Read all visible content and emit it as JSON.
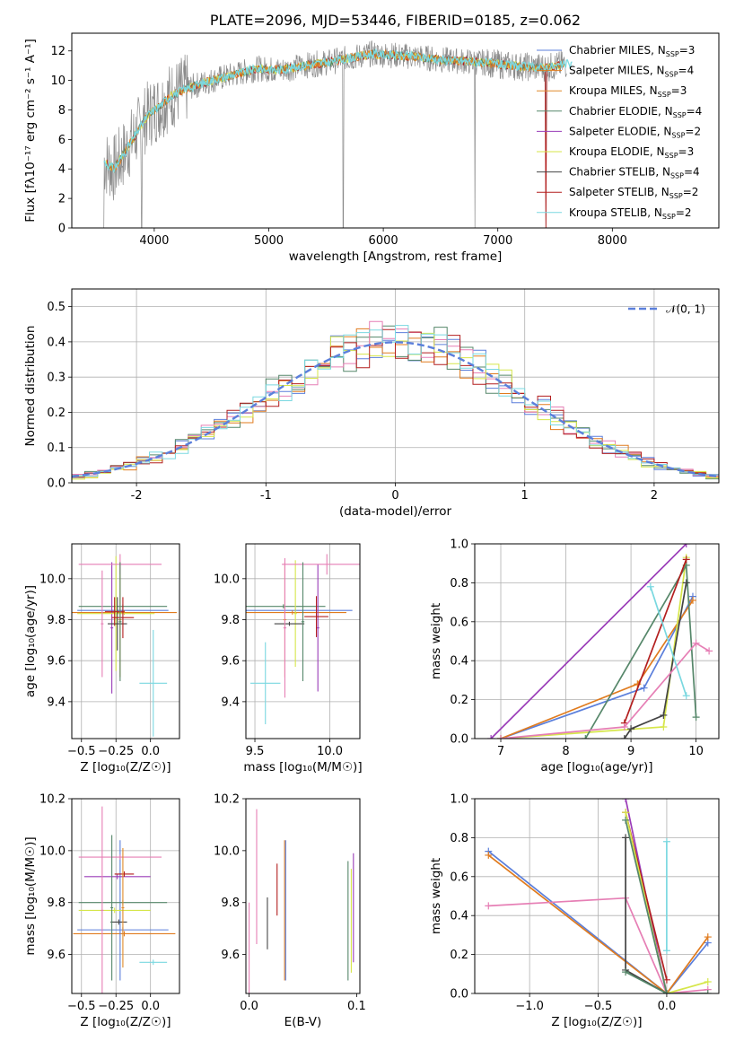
{
  "colors": {
    "chabrier_miles": "#5b7fdb",
    "salpeter_miles": "#e07b1e",
    "kroupa_miles": "#e08a2a",
    "chabrier_elodie": "#56876a",
    "salpeter_elodie": "#9a3cb8",
    "kroupa_elodie": "#d6e64a",
    "chabrier_stelib": "#444444",
    "salpeter_stelib": "#b31f1f",
    "kroupa_stelib": "#7ad8e0",
    "pink": "#e67fb5",
    "gray": "#8a8a8a",
    "grid": "#b0b0b0"
  },
  "chart_data": [
    {
      "type": "line",
      "panel": "spectrum",
      "title": "PLATE=2096, MJD=53446, FIBERID=0185, z=0.062",
      "xlabel": "wavelength [Angstrom, rest frame]",
      "ylabel": "Flux [fλ10⁻¹⁷ erg cm⁻² s⁻¹ A⁻¹]",
      "xlim": [
        3280,
        8930
      ],
      "ylim": [
        0,
        13.2
      ],
      "xticks": [
        4000,
        5000,
        6000,
        7000,
        8000
      ],
      "yticks": [
        0,
        2,
        4,
        6,
        8,
        10,
        12
      ],
      "grid": false,
      "legend_position": "upper-right",
      "data_continuum": {
        "x": [
          3560,
          3650,
          3750,
          3850,
          3950,
          4050,
          4150,
          4300,
          4500,
          4700,
          4900,
          5100,
          5300,
          5500,
          5700,
          5900,
          6100,
          6300,
          6500,
          6700,
          6900,
          7100,
          7300,
          7450,
          7600
        ],
        "y": [
          4.5,
          4.0,
          5.2,
          6.5,
          7.7,
          8.3,
          9.0,
          9.5,
          10.0,
          10.4,
          10.8,
          10.7,
          11.0,
          11.2,
          11.5,
          11.8,
          11.7,
          11.6,
          11.4,
          11.3,
          11.2,
          11.0,
          10.9,
          10.9,
          11.1
        ]
      },
      "data_dropouts_x": [
        3560,
        3890,
        5650,
        6800,
        7420
      ],
      "legend": [
        {
          "label": "Chabrier MILES, N",
          "sub": "SSP",
          "suffix": "=3",
          "color_key": "chabrier_miles"
        },
        {
          "label": "Salpeter MILES, N",
          "sub": "SSP",
          "suffix": "=4",
          "color_key": "salpeter_miles"
        },
        {
          "label": "Kroupa MILES, N",
          "sub": "SSP",
          "suffix": "=3",
          "color_key": "kroupa_miles"
        },
        {
          "label": "Chabrier ELODIE, N",
          "sub": "SSP",
          "suffix": "=4",
          "color_key": "chabrier_elodie"
        },
        {
          "label": "Salpeter ELODIE, N",
          "sub": "SSP",
          "suffix": "=2",
          "color_key": "salpeter_elodie"
        },
        {
          "label": "Kroupa ELODIE, N",
          "sub": "SSP",
          "suffix": "=3",
          "color_key": "kroupa_elodie"
        },
        {
          "label": "Chabrier STELIB, N",
          "sub": "SSP",
          "suffix": "=4",
          "color_key": "chabrier_stelib"
        },
        {
          "label": "Salpeter STELIB, N",
          "sub": "SSP",
          "suffix": "=2",
          "color_key": "salpeter_stelib"
        },
        {
          "label": "Kroupa STELIB, N",
          "sub": "SSP",
          "suffix": "=2",
          "color_key": "kroupa_stelib"
        }
      ]
    },
    {
      "type": "line",
      "panel": "residuals",
      "xlabel": "(data-model)/error",
      "ylabel": "Normed distribution",
      "xlim": [
        -2.5,
        2.5
      ],
      "ylim": [
        0,
        0.55
      ],
      "xticks": [
        -2,
        -1,
        0,
        1,
        2
      ],
      "yticks": [
        0.0,
        0.1,
        0.2,
        0.3,
        0.4,
        0.5
      ],
      "grid": true,
      "legend": [
        "𝒩(0, 1)"
      ],
      "legend_position": "upper-right",
      "reference_curve": "normal(0,1)",
      "histogram_bin_width": 0.1,
      "histograms_drawn": 7
    },
    {
      "type": "scatter",
      "panel": "age_vs_Z",
      "xlabel": "Z [log₁₀(Z/Z☉)]",
      "ylabel": "age  [log₁₀(age/yr)]",
      "xlim": [
        -0.57,
        0.21
      ],
      "ylim": [
        9.22,
        10.17
      ],
      "xticks": [
        -0.5,
        -0.25,
        0.0
      ],
      "yticks": [
        9.4,
        9.6,
        9.8,
        10.0
      ],
      "grid": true,
      "points": [
        {
          "x": -0.2,
          "y": 9.845,
          "xerr": 0.33,
          "yerr": 0.01,
          "color_key": "chabrier_miles"
        },
        {
          "x": -0.19,
          "y": 9.835,
          "xerr": 0.38,
          "yerr": 0.01,
          "color_key": "salpeter_miles"
        },
        {
          "x": -0.22,
          "y": 9.8,
          "xerr": 0.01,
          "yerr": 0.28,
          "color_key": "kroupa_miles"
        },
        {
          "x": -0.2,
          "y": 9.865,
          "xerr": 0.32,
          "yerr": 0.01,
          "color_key": "chabrier_elodie"
        },
        {
          "x": -0.28,
          "y": 9.76,
          "xerr": 0.01,
          "yerr": 0.32,
          "color_key": "salpeter_elodie"
        },
        {
          "x": -0.25,
          "y": 9.83,
          "xerr": 0.28,
          "yerr": 0.28,
          "color_key": "kroupa_elodie"
        },
        {
          "x": -0.24,
          "y": 9.78,
          "xerr": 0.07,
          "yerr": 0.13,
          "color_key": "chabrier_stelib"
        },
        {
          "x": -0.2,
          "y": 9.81,
          "xerr": 0.08,
          "yerr": 0.1,
          "color_key": "salpeter_stelib"
        },
        {
          "x": 0.02,
          "y": 9.49,
          "xerr": 0.1,
          "yerr": 0.26,
          "color_key": "kroupa_stelib"
        },
        {
          "x": -0.22,
          "y": 10.07,
          "xerr": 0.3,
          "yerr": 0.05,
          "color_key": "pink"
        },
        {
          "x": -0.35,
          "y": 9.78,
          "xerr": 0.01,
          "yerr": 0.26,
          "color_key": "pink"
        },
        {
          "x": -0.26,
          "y": 9.84,
          "xerr": 0.07,
          "yerr": 0.07,
          "color_key": "salpeter_stelib"
        },
        {
          "x": -0.22,
          "y": 9.79,
          "xerr": 0.01,
          "yerr": 0.29,
          "color_key": "chabrier_elodie"
        }
      ]
    },
    {
      "type": "scatter",
      "panel": "age_vs_mass",
      "xlabel": "mass [log₁₀(M/M☉)]",
      "xlim": [
        9.44,
        10.2
      ],
      "ylim": [
        9.22,
        10.17
      ],
      "xticks": [
        9.5,
        10.0
      ],
      "yticks": [
        9.4,
        9.6,
        9.8,
        10.0
      ],
      "grid": true,
      "points": [
        {
          "x": 9.77,
          "y": 9.845,
          "xerr": 0.38,
          "yerr": 0.01,
          "color_key": "chabrier_miles"
        },
        {
          "x": 9.75,
          "y": 9.835,
          "xerr": 0.36,
          "yerr": 0.01,
          "color_key": "salpeter_miles"
        },
        {
          "x": 9.7,
          "y": 9.8,
          "xerr": 0.01,
          "yerr": 0.28,
          "color_key": "kroupa_miles"
        },
        {
          "x": 9.69,
          "y": 9.865,
          "xerr": 0.28,
          "yerr": 0.01,
          "color_key": "chabrier_elodie"
        },
        {
          "x": 9.92,
          "y": 9.76,
          "xerr": 0.01,
          "yerr": 0.31,
          "color_key": "salpeter_elodie"
        },
        {
          "x": 9.77,
          "y": 9.83,
          "xerr": 0.01,
          "yerr": 0.26,
          "color_key": "kroupa_elodie"
        },
        {
          "x": 9.73,
          "y": 9.78,
          "xerr": 0.1,
          "yerr": 0.01,
          "color_key": "chabrier_stelib"
        },
        {
          "x": 9.91,
          "y": 9.815,
          "xerr": 0.08,
          "yerr": 0.1,
          "color_key": "salpeter_stelib"
        },
        {
          "x": 9.57,
          "y": 9.49,
          "xerr": 0.1,
          "yerr": 0.2,
          "color_key": "kroupa_stelib"
        },
        {
          "x": 9.98,
          "y": 10.07,
          "xerr": 0.3,
          "yerr": 0.05,
          "color_key": "pink"
        },
        {
          "x": 9.7,
          "y": 9.76,
          "xerr": 0.01,
          "yerr": 0.34,
          "color_key": "pink"
        },
        {
          "x": 9.82,
          "y": 9.79,
          "xerr": 0.01,
          "yerr": 0.29,
          "color_key": "chabrier_elodie"
        }
      ]
    },
    {
      "type": "line",
      "panel": "mass_weight_vs_age",
      "xlabel": "age  [log₁₀(age/yr)]",
      "ylabel": "mass weight",
      "xlim": [
        6.6,
        10.35
      ],
      "ylim": [
        0,
        1.0
      ],
      "xticks": [
        7,
        8,
        9,
        10
      ],
      "yticks": [
        0.0,
        0.2,
        0.4,
        0.6,
        0.8,
        1.0
      ],
      "grid": true,
      "series": [
        {
          "color_key": "chabrier_miles",
          "x": [
            7.0,
            9.2,
            9.95
          ],
          "y": [
            0.0,
            0.26,
            0.73
          ]
        },
        {
          "color_key": "salpeter_miles",
          "x": [
            7.0,
            9.1,
            9.95
          ],
          "y": [
            0.0,
            0.28,
            0.71
          ]
        },
        {
          "color_key": "salpeter_elodie",
          "x": [
            6.85,
            9.85
          ],
          "y": [
            0.0,
            1.0
          ]
        },
        {
          "color_key": "kroupa_elodie",
          "x": [
            7.0,
            9.5,
            9.85
          ],
          "y": [
            0.0,
            0.06,
            0.93
          ]
        },
        {
          "color_key": "chabrier_elodie",
          "x": [
            8.3,
            9.85,
            10.0
          ],
          "y": [
            0.0,
            0.89,
            0.11
          ]
        },
        {
          "color_key": "chabrier_stelib",
          "x": [
            8.9,
            9.0,
            9.5,
            9.85
          ],
          "y": [
            0.0,
            0.05,
            0.12,
            0.8
          ]
        },
        {
          "color_key": "salpeter_stelib",
          "x": [
            8.9,
            9.85
          ],
          "y": [
            0.08,
            0.92
          ]
        },
        {
          "color_key": "pink",
          "x": [
            7.0,
            8.9,
            10.0,
            10.2
          ],
          "y": [
            0.0,
            0.06,
            0.49,
            0.45
          ]
        },
        {
          "color_key": "kroupa_stelib",
          "x": [
            9.3,
            9.85
          ],
          "y": [
            0.78,
            0.22
          ]
        }
      ]
    },
    {
      "type": "scatter",
      "panel": "mass_vs_Z",
      "xlabel": "Z [log₁₀(Z/Z☉)]",
      "ylabel": "mass [log₁₀(M/M☉)]",
      "xlim": [
        -0.57,
        0.21
      ],
      "ylim": [
        9.45,
        10.2
      ],
      "xticks": [
        -0.5,
        -0.25,
        0.0
      ],
      "yticks": [
        9.6,
        9.8,
        10.0,
        10.2
      ],
      "grid": true,
      "points": [
        {
          "x": -0.2,
          "y": 9.695,
          "xerr": 0.33,
          "yerr": 0.01,
          "color_key": "chabrier_miles"
        },
        {
          "x": -0.19,
          "y": 9.68,
          "xerr": 0.37,
          "yerr": 0.01,
          "color_key": "salpeter_miles"
        },
        {
          "x": -0.22,
          "y": 9.77,
          "xerr": 0.01,
          "yerr": 0.27,
          "color_key": "chabrier_miles"
        },
        {
          "x": -0.2,
          "y": 9.8,
          "xerr": 0.32,
          "yerr": 0.01,
          "color_key": "chabrier_elodie"
        },
        {
          "x": -0.24,
          "y": 9.9,
          "xerr": 0.24,
          "yerr": 0.01,
          "color_key": "salpeter_elodie"
        },
        {
          "x": -0.26,
          "y": 9.77,
          "xerr": 0.26,
          "yerr": 0.01,
          "color_key": "kroupa_elodie"
        },
        {
          "x": -0.23,
          "y": 9.725,
          "xerr": 0.06,
          "yerr": 0.01,
          "color_key": "chabrier_stelib"
        },
        {
          "x": -0.19,
          "y": 9.91,
          "xerr": 0.07,
          "yerr": 0.01,
          "color_key": "salpeter_stelib"
        },
        {
          "x": 0.02,
          "y": 9.57,
          "xerr": 0.1,
          "yerr": 0.01,
          "color_key": "kroupa_stelib"
        },
        {
          "x": -0.22,
          "y": 9.975,
          "xerr": 0.3,
          "yerr": 0.01,
          "color_key": "pink"
        },
        {
          "x": -0.35,
          "y": 9.77,
          "xerr": 0.01,
          "yerr": 0.4,
          "color_key": "pink"
        },
        {
          "x": -0.28,
          "y": 9.78,
          "xerr": 0.01,
          "yerr": 0.28,
          "color_key": "chabrier_elodie"
        },
        {
          "x": -0.2,
          "y": 9.78,
          "xerr": 0.01,
          "yerr": 0.23,
          "color_key": "kroupa_miles"
        }
      ]
    },
    {
      "type": "scatter",
      "panel": "mass_vs_EBV",
      "xlabel": "E(B-V)",
      "xlim": [
        -0.003,
        0.103
      ],
      "ylim": [
        9.45,
        10.2
      ],
      "xticks": [
        0.0,
        0.1
      ],
      "yticks": [
        9.6,
        9.8,
        10.0,
        10.2
      ],
      "grid": false,
      "points": [
        {
          "x": 0.007,
          "y": 9.9,
          "xerr": 0.0,
          "yerr": 0.26,
          "color_key": "pink"
        },
        {
          "x": 0.017,
          "y": 9.72,
          "xerr": 0.0,
          "yerr": 0.1,
          "color_key": "chabrier_stelib"
        },
        {
          "x": 0.026,
          "y": 9.85,
          "xerr": 0.0,
          "yerr": 0.1,
          "color_key": "salpeter_stelib"
        },
        {
          "x": 0.033,
          "y": 9.77,
          "xerr": 0.0,
          "yerr": 0.27,
          "color_key": "salpeter_miles"
        },
        {
          "x": 0.034,
          "y": 9.77,
          "xerr": 0.0,
          "yerr": 0.27,
          "color_key": "chabrier_miles"
        },
        {
          "x": 0.092,
          "y": 9.73,
          "xerr": 0.0,
          "yerr": 0.23,
          "color_key": "chabrier_elodie"
        },
        {
          "x": 0.095,
          "y": 9.73,
          "xerr": 0.0,
          "yerr": 0.2,
          "color_key": "kroupa_elodie"
        },
        {
          "x": 0.097,
          "y": 9.78,
          "xerr": 0.0,
          "yerr": 0.21,
          "color_key": "salpeter_elodie"
        },
        {
          "x": 0.0,
          "y": 9.6,
          "xerr": 0.0,
          "yerr": 0.2,
          "color_key": "pink"
        }
      ]
    },
    {
      "type": "line",
      "panel": "mass_weight_vs_Z",
      "xlabel": "Z [log₁₀(Z/Z☉)]",
      "ylabel": "mass weight",
      "xlim": [
        -1.4,
        0.38
      ],
      "ylim": [
        0,
        1.0
      ],
      "xticks": [
        -1.0,
        -0.5,
        0.0
      ],
      "yticks": [
        0.0,
        0.2,
        0.4,
        0.6,
        0.8,
        1.0
      ],
      "grid": true,
      "series": [
        {
          "color_key": "chabrier_miles",
          "x": [
            -1.3,
            0.0,
            0.3
          ],
          "y": [
            0.73,
            0.0,
            0.26
          ]
        },
        {
          "color_key": "salpeter_miles",
          "x": [
            -1.3,
            0.0,
            0.3
          ],
          "y": [
            0.71,
            0.0,
            0.29
          ]
        },
        {
          "color_key": "pink",
          "x": [
            -1.3,
            -0.3,
            0.0,
            0.3
          ],
          "y": [
            0.45,
            0.49,
            0.0,
            0.02
          ]
        },
        {
          "color_key": "salpeter_elodie",
          "x": [
            -0.3,
            0.0
          ],
          "y": [
            1.0,
            0.0
          ]
        },
        {
          "color_key": "salpeter_stelib",
          "x": [
            -0.3,
            0.0
          ],
          "y": [
            0.93,
            0.07
          ]
        },
        {
          "color_key": "kroupa_elodie",
          "x": [
            -0.3,
            0.0,
            0.3
          ],
          "y": [
            0.93,
            0.0,
            0.06
          ]
        },
        {
          "color_key": "chabrier_elodie",
          "x": [
            -0.3,
            0.0,
            0.3
          ],
          "y": [
            0.89,
            0.0,
            0.0
          ]
        },
        {
          "color_key": "chabrier_stelib",
          "x": [
            -0.3,
            -0.3,
            0.0
          ],
          "y": [
            0.8,
            0.12,
            0.0
          ]
        },
        {
          "color_key": "chabrier_elodie",
          "x": [
            -0.3,
            0.0
          ],
          "y": [
            0.11,
            0.0
          ]
        },
        {
          "color_key": "kroupa_stelib",
          "x": [
            0.0,
            0.0
          ],
          "y": [
            0.78,
            0.22
          ]
        }
      ]
    }
  ]
}
